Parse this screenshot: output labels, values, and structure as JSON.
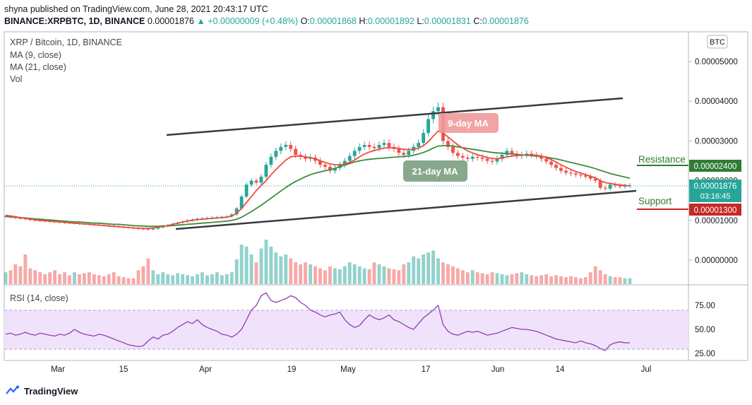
{
  "header": {
    "published": "shyna published on TradingView.com, June 28, 2021 20:43:17 UTC",
    "symbol": "BINANCE:XRPBTC, 1D, BINANCE",
    "last": "0.00001876",
    "change": "+0.00000009 (+0.48%)",
    "o_label": "O:",
    "o_value": "0.00001868",
    "h_label": "H:",
    "h_value": "0.00001892",
    "l_label": "L:",
    "l_value": "0.00001831",
    "c_label": "C:",
    "c_value": "0.00001876"
  },
  "legend": {
    "title": "XRP / Bitcoin, 1D, BINANCE",
    "ma9": "MA (9, close)",
    "ma21": "MA (21, close)",
    "vol": "Vol",
    "rsi": "RSI (14, close)"
  },
  "annotations": {
    "ma9_label": "9-day MA",
    "ma21_label": "21-day MA",
    "resistance_label": "Resistance",
    "resistance_value": "0.00002400",
    "support_label": "Support",
    "support_value": "0.00001300",
    "current_price": "0.00001876",
    "countdown": "03:16:45",
    "currency": "BTC"
  },
  "footer": {
    "brand": "TradingView"
  },
  "colors": {
    "up": "#26a69a",
    "down": "#ef5350",
    "ma9": "#f04a3a",
    "ma21": "#3c8c3c",
    "rsi": "#7b1fa2",
    "rsi_band": "#f1e2fb",
    "resistance": "#2e7d32",
    "support": "#c62828"
  },
  "chart_data": {
    "type": "candlestick",
    "title": "XRP / Bitcoin, 1D, BINANCE",
    "price_ticks": [
      "0.00005000",
      "0.00004000",
      "0.00003000",
      "0.00002000",
      "0.00001000",
      "0.00000000"
    ],
    "rsi_ticks": [
      "75.00",
      "50.00",
      "25.00"
    ],
    "x_ticks": [
      "Mar",
      "15",
      "Apr",
      "19",
      "May",
      "17",
      "Jun",
      "14",
      "Jul"
    ],
    "price_series": {
      "name": "XRPBTC",
      "close": [
        1.1e-05,
        1.08e-05,
        1.06e-05,
        1.05e-05,
        1.03e-05,
        1.01e-05,
        1e-05,
        9.9e-06,
        9.8e-06,
        9.7e-06,
        9.6e-06,
        9.5e-06,
        9.4e-06,
        9.3e-06,
        9.3e-06,
        9.2e-06,
        9.1e-06,
        9e-06,
        8.9e-06,
        8.8e-06,
        8.7e-06,
        8.6e-06,
        8.5e-06,
        8.4e-06,
        8.3e-06,
        8.2e-06,
        8e-06,
        7.9e-06,
        7.8e-06,
        7.7e-06,
        7.9e-06,
        8.2e-06,
        8.5e-06,
        8.8e-06,
        9.1e-06,
        9.4e-06,
        9.7e-06,
        1e-05,
        1.02e-05,
        1.04e-05,
        1.05e-05,
        1.06e-05,
        1.07e-05,
        1.08e-05,
        1.09e-05,
        1.1e-05,
        1.15e-05,
        1.3e-05,
        1.6e-05,
        1.9e-05,
        2e-05,
        1.95e-05,
        2.1e-05,
        2.4e-05,
        2.6e-05,
        2.75e-05,
        2.85e-05,
        2.9e-05,
        2.8e-05,
        2.65e-05,
        2.6e-05,
        2.55e-05,
        2.58e-05,
        2.5e-05,
        2.4e-05,
        2.35e-05,
        2.25e-05,
        2.32e-05,
        2.4e-05,
        2.5e-05,
        2.62e-05,
        2.75e-05,
        2.85e-05,
        2.9e-05,
        2.85e-05,
        2.82e-05,
        2.9e-05,
        2.95e-05,
        2.85e-05,
        2.8e-05,
        2.7e-05,
        2.65e-05,
        2.75e-05,
        2.85e-05,
        2.95e-05,
        3.2e-05,
        3.55e-05,
        3.75e-05,
        3.85e-05,
        3e-05,
        2.85e-05,
        2.7e-05,
        2.62e-05,
        2.58e-05,
        2.55e-05,
        2.6e-05,
        2.58e-05,
        2.55e-05,
        2.5e-05,
        2.48e-05,
        2.55e-05,
        2.65e-05,
        2.75e-05,
        2.68e-05,
        2.62e-05,
        2.65e-05,
        2.68e-05,
        2.65e-05,
        2.62e-05,
        2.55e-05,
        2.48e-05,
        2.4e-05,
        2.32e-05,
        2.25e-05,
        2.2e-05,
        2.18e-05,
        2.15e-05,
        2.13e-05,
        2.1e-05,
        2.05e-05,
        2e-05,
        1.82e-05,
        1.8e-05,
        1.9e-05,
        1.88e-05,
        1.85e-05,
        1.87e-05,
        1.88e-05
      ],
      "ma9": [
        1.13e-05,
        1.11e-05,
        1.09e-05,
        1.07e-05,
        1.05e-05,
        1.03e-05,
        1.02e-05,
        1e-05,
        9.9e-06,
        9.8e-06,
        9.7e-06,
        9.6e-06,
        9.5e-06,
        9.4e-06,
        9.3e-06,
        9.2e-06,
        9.1e-06,
        9e-06,
        8.9e-06,
        8.8e-06,
        8.7e-06,
        8.6e-06,
        8.5e-06,
        8.4e-06,
        8.3e-06,
        8.2e-06,
        8.1e-06,
        8e-06,
        8e-06,
        8e-06,
        8.1e-06,
        8.3e-06,
        8.5e-06,
        8.7e-06,
        9e-06,
        9.3e-06,
        9.6e-06,
        9.8e-06,
        1e-05,
        1.02e-05,
        1.03e-05,
        1.04e-05,
        1.05e-05,
        1.06e-05,
        1.07e-05,
        1.08e-05,
        1.11e-05,
        1.18e-05,
        1.3e-05,
        1.45e-05,
        1.6e-05,
        1.75e-05,
        1.88e-05,
        2e-05,
        2.15e-05,
        2.28e-05,
        2.4e-05,
        2.52e-05,
        2.6e-05,
        2.62e-05,
        2.62e-05,
        2.6e-05,
        2.58e-05,
        2.55e-05,
        2.5e-05,
        2.46e-05,
        2.42e-05,
        2.4e-05,
        2.4e-05,
        2.42e-05,
        2.46e-05,
        2.52e-05,
        2.6e-05,
        2.67e-05,
        2.72e-05,
        2.76e-05,
        2.79e-05,
        2.82e-05,
        2.83e-05,
        2.83e-05,
        2.81e-05,
        2.79e-05,
        2.78e-05,
        2.79e-05,
        2.82e-05,
        2.88e-05,
        2.98e-05,
        3.12e-05,
        3.25e-05,
        3.2e-05,
        3.1e-05,
        3e-05,
        2.9e-05,
        2.82e-05,
        2.75e-05,
        2.7e-05,
        2.65e-05,
        2.62e-05,
        2.58e-05,
        2.56e-05,
        2.55e-05,
        2.57e-05,
        2.6e-05,
        2.62e-05,
        2.63e-05,
        2.64e-05,
        2.65e-05,
        2.65e-05,
        2.64e-05,
        2.62e-05,
        2.58e-05,
        2.53e-05,
        2.47e-05,
        2.4e-05,
        2.34e-05,
        2.28e-05,
        2.23e-05,
        2.19e-05,
        2.15e-05,
        2.11e-05,
        2.07e-05,
        2e-05,
        1.95e-05,
        1.93e-05,
        1.91e-05,
        1.89e-05,
        1.88e-05,
        1.87e-05
      ],
      "ma21": [
        1.1e-05,
        1.09e-05,
        1.08e-05,
        1.07e-05,
        1.06e-05,
        1.05e-05,
        1.04e-05,
        1.03e-05,
        1.02e-05,
        1.01e-05,
        1e-05,
        9.9e-06,
        9.8e-06,
        9.7e-06,
        9.6e-06,
        9.6e-06,
        9.5e-06,
        9.4e-06,
        9.3e-06,
        9.3e-06,
        9.2e-06,
        9.1e-06,
        9e-06,
        9e-06,
        8.9e-06,
        8.8e-06,
        8.7e-06,
        8.6e-06,
        8.6e-06,
        8.5e-06,
        8.5e-06,
        8.5e-06,
        8.6e-06,
        8.6e-06,
        8.7e-06,
        8.8e-06,
        8.9e-06,
        9e-06,
        9.1e-06,
        9.2e-06,
        9.3e-06,
        9.4e-06,
        9.5e-06,
        9.6e-06,
        9.7e-06,
        9.8e-06,
        1e-05,
        1.03e-05,
        1.08e-05,
        1.15e-05,
        1.22e-05,
        1.3e-05,
        1.38e-05,
        1.47e-05,
        1.56e-05,
        1.65e-05,
        1.74e-05,
        1.83e-05,
        1.91e-05,
        1.98e-05,
        2.04e-05,
        2.1e-05,
        2.15e-05,
        2.19e-05,
        2.22e-05,
        2.25e-05,
        2.28e-05,
        2.31e-05,
        2.35e-05,
        2.39e-05,
        2.43e-05,
        2.47e-05,
        2.5e-05,
        2.52e-05,
        2.54e-05,
        2.55e-05,
        2.56e-05,
        2.57e-05,
        2.58e-05,
        2.59e-05,
        2.6e-05,
        2.61e-05,
        2.62e-05,
        2.64e-05,
        2.67e-05,
        2.71e-05,
        2.76e-05,
        2.82e-05,
        2.87e-05,
        2.88e-05,
        2.88e-05,
        2.87e-05,
        2.85e-05,
        2.83e-05,
        2.81e-05,
        2.79e-05,
        2.77e-05,
        2.75e-05,
        2.73e-05,
        2.71e-05,
        2.7e-05,
        2.69e-05,
        2.68e-05,
        2.67e-05,
        2.66e-05,
        2.65e-05,
        2.64e-05,
        2.63e-05,
        2.62e-05,
        2.61e-05,
        2.59e-05,
        2.57e-05,
        2.55e-05,
        2.52e-05,
        2.49e-05,
        2.46e-05,
        2.43e-05,
        2.4e-05,
        2.37e-05,
        2.34e-05,
        2.3e-05,
        2.26e-05,
        2.22e-05,
        2.18e-05,
        2.15e-05,
        2.12e-05,
        2.09e-05,
        2.06e-05
      ],
      "rsi": [
        45,
        46,
        44,
        45,
        47,
        45,
        44,
        46,
        45,
        44,
        43,
        45,
        44,
        46,
        50,
        47,
        45,
        44,
        43,
        45,
        44,
        42,
        40,
        38,
        36,
        34,
        33,
        32,
        33,
        38,
        42,
        40,
        44,
        45,
        48,
        52,
        55,
        58,
        56,
        60,
        55,
        52,
        50,
        48,
        45,
        44,
        42,
        45,
        50,
        60,
        70,
        75,
        85,
        88,
        80,
        78,
        80,
        82,
        85,
        83,
        78,
        75,
        70,
        68,
        65,
        63,
        65,
        66,
        68,
        60,
        55,
        52,
        54,
        60,
        65,
        62,
        60,
        62,
        65,
        60,
        58,
        55,
        52,
        50,
        56,
        62,
        66,
        70,
        75,
        55,
        48,
        45,
        44,
        46,
        48,
        47,
        48,
        46,
        44,
        45,
        46,
        48,
        50,
        52,
        51,
        50,
        50,
        49,
        48,
        46,
        44,
        42,
        40,
        39,
        38,
        37,
        36,
        38,
        36,
        35,
        33,
        30,
        28,
        34,
        36,
        37,
        36,
        36
      ],
      "volume": [
        12,
        14,
        20,
        18,
        30,
        16,
        14,
        12,
        10,
        12,
        14,
        10,
        12,
        9,
        12,
        10,
        11,
        12,
        10,
        9,
        8,
        10,
        12,
        8,
        7,
        6,
        6,
        14,
        18,
        26,
        14,
        10,
        12,
        10,
        9,
        11,
        10,
        9,
        8,
        10,
        12,
        9,
        10,
        12,
        9,
        10,
        12,
        25,
        40,
        38,
        30,
        22,
        36,
        45,
        38,
        32,
        28,
        30,
        26,
        22,
        20,
        22,
        20,
        18,
        16,
        14,
        18,
        16,
        15,
        18,
        22,
        20,
        18,
        16,
        15,
        22,
        20,
        18,
        16,
        15,
        14,
        20,
        22,
        28,
        26,
        30,
        32,
        34,
        26,
        22,
        20,
        18,
        16,
        14,
        12,
        14,
        12,
        11,
        10,
        12,
        11,
        10,
        9,
        10,
        11,
        12,
        10,
        9,
        8,
        9,
        10,
        8,
        9,
        8,
        7,
        8,
        7,
        6,
        7,
        12,
        18,
        14,
        10,
        8,
        7,
        7,
        6,
        6
      ]
    },
    "levels": {
      "resistance": 2.4e-05,
      "support": 1.3e-05
    },
    "ylim": [
      0.0,
      5.5e-06
    ],
    "rsi_band": [
      30,
      70
    ],
    "grid": false
  }
}
